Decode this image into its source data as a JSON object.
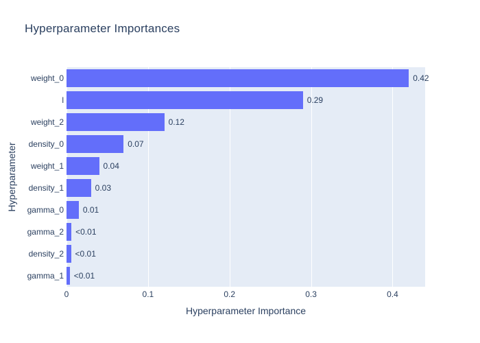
{
  "colors": {
    "bar": "#636efa",
    "plot_background": "#e5ecf6",
    "grid": "#ffffff",
    "zeroline": "#ffffff",
    "text": "#2a3f5f",
    "paper_background": "#ffffff"
  },
  "chart_data": {
    "type": "bar",
    "orientation": "horizontal",
    "title": "Hyperparameter Importances",
    "xlabel": "Hyperparameter Importance",
    "ylabel": "Hyperparameter",
    "xlim": [
      0,
      0.44
    ],
    "grid": true,
    "legend_position": "none",
    "categories": [
      "weight_0",
      "l",
      "weight_2",
      "density_0",
      "weight_1",
      "density_1",
      "gamma_0",
      "gamma_2",
      "density_2",
      "gamma_1"
    ],
    "values": [
      0.42,
      0.29,
      0.12,
      0.07,
      0.04,
      0.03,
      0.015,
      0.006,
      0.0055,
      0.004
    ],
    "value_labels": [
      "0.42",
      "0.29",
      "0.12",
      "0.07",
      "0.04",
      "0.03",
      "0.01",
      "<0.01",
      "<0.01",
      "<0.01"
    ],
    "x_ticks": [
      {
        "value": 0,
        "label": "0"
      },
      {
        "value": 0.1,
        "label": "0.1"
      },
      {
        "value": 0.2,
        "label": "0.2"
      },
      {
        "value": 0.3,
        "label": "0.3"
      },
      {
        "value": 0.4,
        "label": "0.4"
      }
    ]
  }
}
